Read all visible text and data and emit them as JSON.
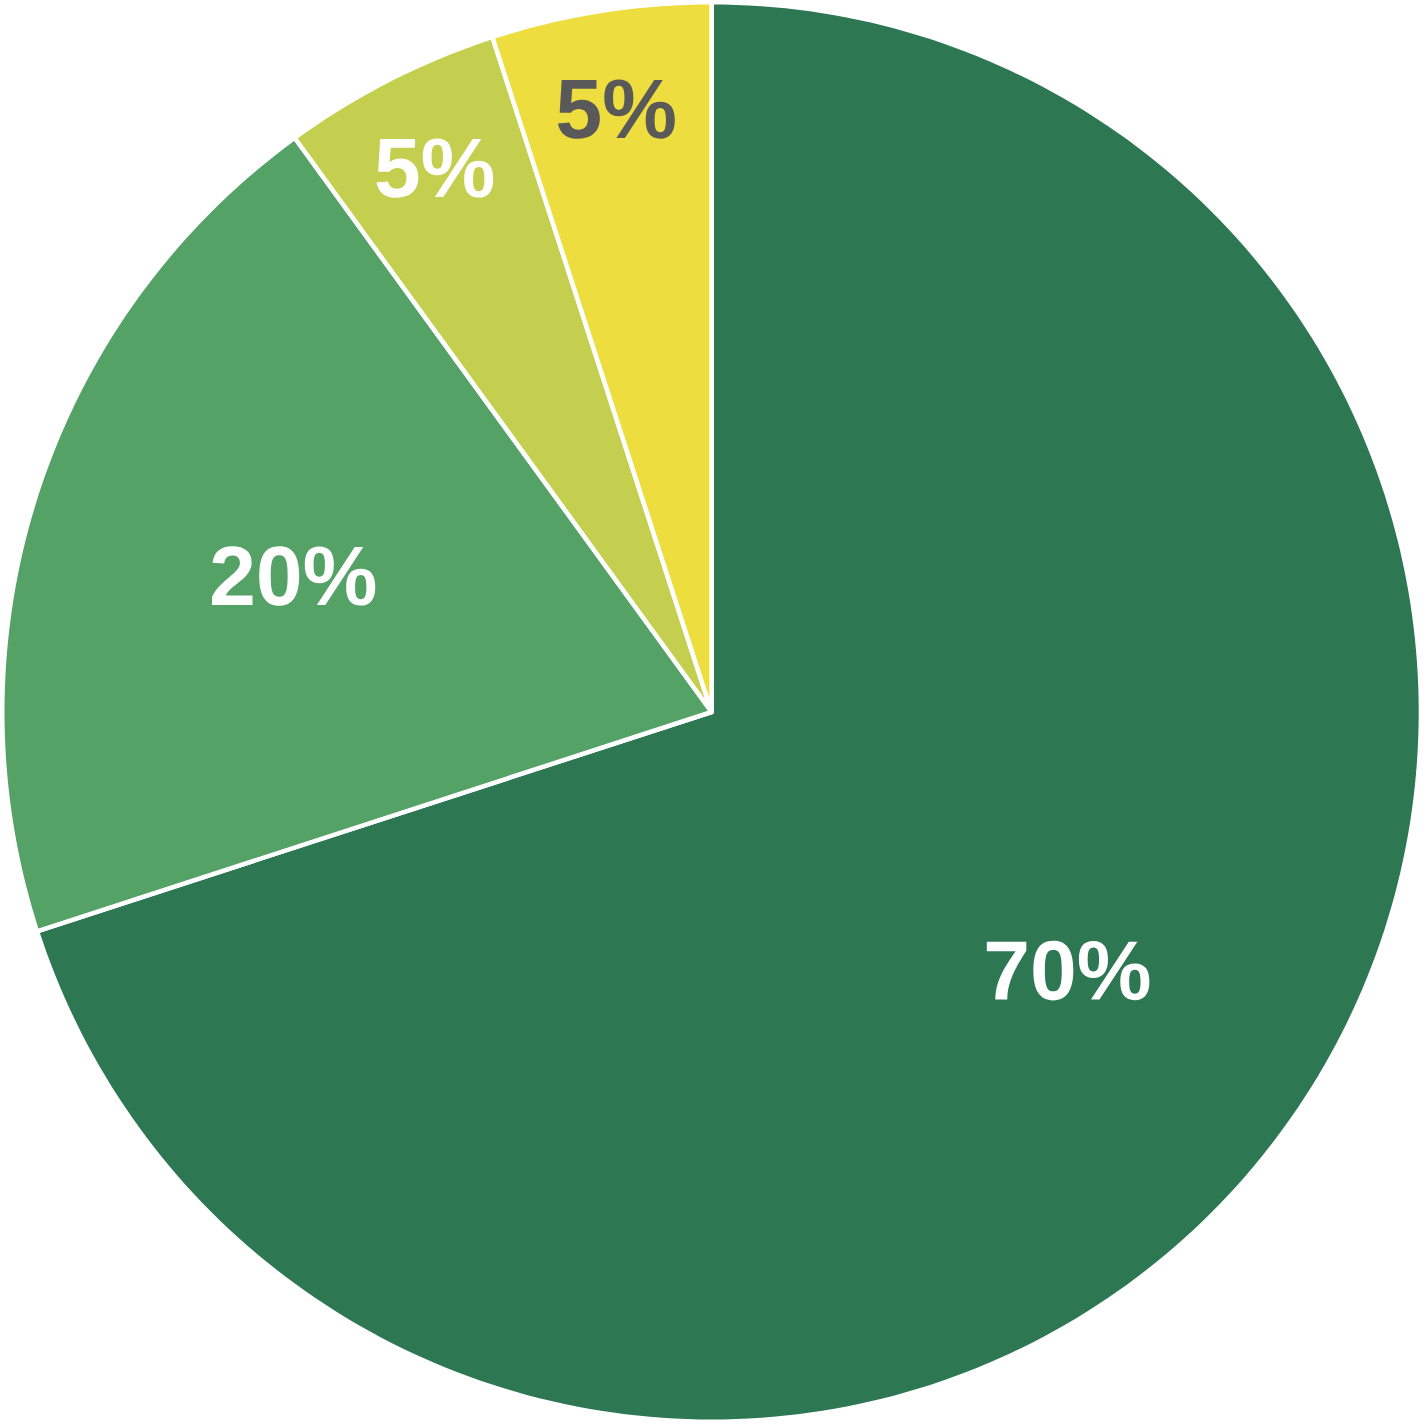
{
  "chart_data": {
    "type": "pie",
    "categories": [
      null,
      null,
      null,
      null
    ],
    "values": [
      70,
      20,
      5,
      5
    ],
    "colors": [
      "#2d7752",
      "#55a267",
      "#c5cf4f",
      "#eedd3e"
    ],
    "value_labels": [
      "70%",
      "20%",
      "5%",
      "5%"
    ]
  }
}
